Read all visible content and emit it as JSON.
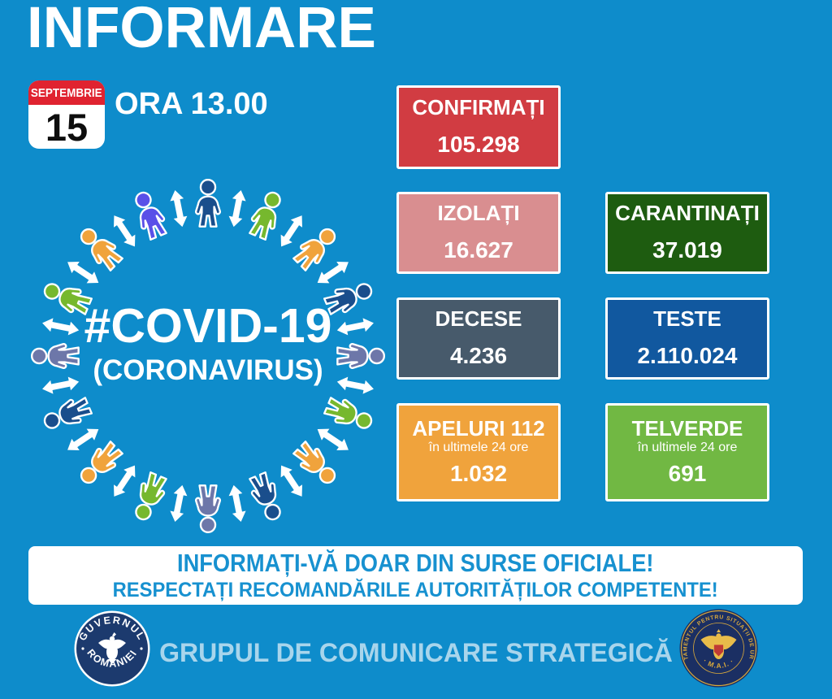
{
  "header": {
    "title": "INFORMARE",
    "time": "ORA 13.00",
    "calendar": {
      "month": "SEPTEMBRIE",
      "day": "15"
    }
  },
  "circle": {
    "hashtag": "#COVID-19",
    "subtitle": "(CORONAVIRUS)",
    "person_colors": [
      "#1a4e8c",
      "#76b82e",
      "#f0a33c",
      "#1a4e8c",
      "#6d77a9",
      "#76b82e",
      "#f0a33c",
      "#1a4e8c",
      "#6d77a9",
      "#76b82e",
      "#f0a33c",
      "#1a4e8c",
      "#6d77a9",
      "#76b82e",
      "#f0a33c",
      "#5a50e8"
    ]
  },
  "stats": {
    "confirmati": {
      "label": "CONFIRMAȚI",
      "value": "105.298",
      "bg": "#d13c42"
    },
    "izolati": {
      "label": "IZOLAȚI",
      "value": "16.627",
      "bg": "#d98e90"
    },
    "carantinati": {
      "label": "CARANTINAȚI",
      "value": "37.019",
      "bg": "#1e5c10"
    },
    "decese": {
      "label": "DECESE",
      "value": "4.236",
      "bg": "#475a6b"
    },
    "teste": {
      "label": "TESTE",
      "value": "2.110.024",
      "bg": "#11589f"
    },
    "apeluri": {
      "label": "APELURI 112",
      "sub": "în ultimele 24 ore",
      "value": "1.032",
      "bg": "#f0a33c"
    },
    "telverde": {
      "label": "TELVERDE",
      "sub": "în ultimele 24 ore",
      "value": "691",
      "bg": "#71b843"
    }
  },
  "banner": {
    "line1": "INFORMAȚI-VĂ DOAR DIN SURSE OFICIALE!",
    "line2": "RESPECTAȚI RECOMANDĂRILE AUTORITĂȚILOR COMPETENTE!"
  },
  "footer": {
    "text": "GRUPUL DE COMUNICARE STRATEGICĂ",
    "left_logo": {
      "top": "GUVERNUL",
      "bottom": "ROMÂNIEI"
    },
    "right_logo": {
      "ring": "DEPARTAMENTUL PENTRU SITUAȚII DE URGENȚĂ",
      "bottom": "· M.A.I. ·"
    }
  },
  "colors": {
    "background": "#0e8ccb",
    "confirmati_red": "#d13c42",
    "izolati_pink": "#d98e90",
    "carantinati_green": "#1e5c10",
    "decese_slate": "#475a6b",
    "teste_blue": "#11589f",
    "apeluri_orange": "#f0a33c",
    "telverde_green": "#71b843",
    "banner_text_blue": "#1791d0",
    "footer_text_blue": "#a8d5ec",
    "calendar_red": "#e02330",
    "seal_navy": "#1c3a6e",
    "seal_gold": "#d9a93c"
  }
}
